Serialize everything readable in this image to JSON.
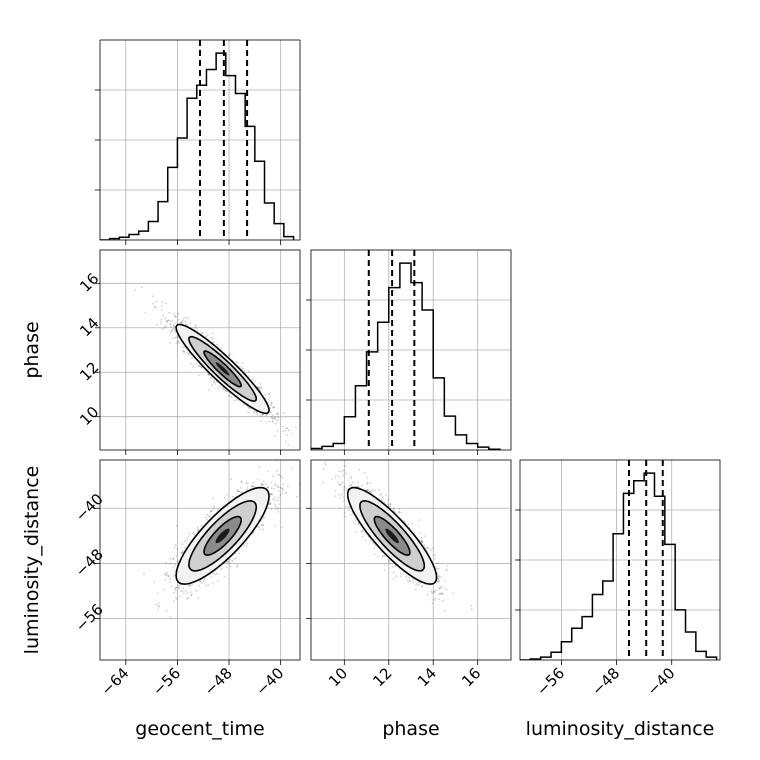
{
  "chart_data": {
    "type": "corner",
    "grid": true,
    "parameters": [
      "geocent_time",
      "phase",
      "luminosity_distance"
    ],
    "axis_labels": {
      "geocent_time": "geocent_time",
      "phase": "phase",
      "luminosity_distance": "luminosity_distance"
    },
    "ranges": {
      "geocent_time": [
        -68,
        -37
      ],
      "phase": [
        8.5,
        17.5
      ],
      "luminosity_distance": [
        -62,
        -33
      ]
    },
    "ticks": {
      "geocent_time": [
        -64,
        -56,
        -48,
        -40
      ],
      "phase": [
        10,
        12,
        14,
        16
      ],
      "luminosity_distance": [
        -56,
        -48,
        -40
      ]
    },
    "tick_labels": {
      "geocent_time": [
        "−64",
        "−56",
        "−48",
        "−40"
      ],
      "phase": [
        "10",
        "12",
        "14",
        "16"
      ],
      "luminosity_distance": [
        "−56",
        "−48",
        "−40"
      ]
    },
    "quantile_lines": {
      "geocent_time": [
        -52.5,
        -48.8,
        -45.2
      ],
      "phase": [
        11.1,
        12.15,
        13.15
      ],
      "luminosity_distance": [
        -46.2,
        -43.7,
        -41.3
      ]
    },
    "histograms": {
      "geocent_time": {
        "bins": [
          -68,
          -66.5,
          -65,
          -63.5,
          -62,
          -60.5,
          -59,
          -57.5,
          -56,
          -54.5,
          -53,
          -51.5,
          -50,
          -48.5,
          -47,
          -45.5,
          -44,
          -42.5,
          -41,
          -39.5,
          -38
        ],
        "counts": [
          0,
          2,
          4,
          8,
          13,
          27,
          56,
          106,
          149,
          207,
          226,
          249,
          273,
          240,
          214,
          166,
          115,
          54,
          24,
          5
        ]
      },
      "phase": {
        "bins": [
          8.5,
          9.0,
          9.5,
          10.0,
          10.5,
          11.0,
          11.5,
          12.0,
          12.5,
          13.0,
          13.5,
          14.0,
          14.5,
          15.0,
          15.5,
          16.0,
          16.5,
          17.0
        ],
        "counts": [
          2,
          5,
          9,
          46,
          89,
          136,
          177,
          225,
          259,
          232,
          194,
          100,
          47,
          21,
          9,
          4,
          1
        ]
      },
      "luminosity_distance": {
        "bins": [
          -62,
          -60.5,
          -59,
          -57.5,
          -56,
          -54.5,
          -53,
          -51.5,
          -50,
          -48.5,
          -47,
          -45.5,
          -44,
          -42.5,
          -41,
          -39.5,
          -38,
          -36.5,
          -35,
          -33.5
        ],
        "counts": [
          0,
          1,
          3,
          8,
          19,
          33,
          45,
          68,
          82,
          131,
          173,
          186,
          194,
          170,
          120,
          52,
          29,
          9,
          3
        ]
      }
    },
    "pairs": [
      {
        "x": "geocent_time",
        "y": "phase",
        "mean": [
          -49,
          12.15
        ],
        "sd": [
          3.6,
          1.0
        ],
        "correlation": -0.93
      },
      {
        "x": "geocent_time",
        "y": "luminosity_distance",
        "mean": [
          -49,
          -44
        ],
        "sd": [
          3.6,
          3.5
        ],
        "correlation": 0.82
      },
      {
        "x": "phase",
        "y": "luminosity_distance",
        "mean": [
          12.15,
          -44
        ],
        "sd": [
          1.0,
          3.5
        ],
        "correlation": -0.86
      }
    ]
  }
}
